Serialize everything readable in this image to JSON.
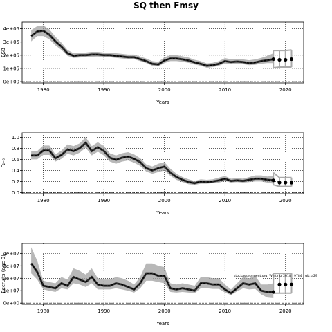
{
  "title": "SQ then Fmsy",
  "chart_data": [
    {
      "type": "line",
      "ylabel": "SSB",
      "xlabel": "Years",
      "xlim": [
        1976.5,
        2023
      ],
      "ylim": [
        -10000,
        450000
      ],
      "xticks": [
        "1980",
        "1990",
        "2000",
        "2010",
        "2020"
      ],
      "yticks": [
        {
          "value": 0,
          "label": "0e+00"
        },
        {
          "value": 100000,
          "label": "1e+05"
        },
        {
          "value": 200000,
          "label": "2e+05"
        },
        {
          "value": 300000,
          "label": "3e+05"
        },
        {
          "value": 400000,
          "label": "4e+05"
        }
      ],
      "hline": 0,
      "grid": true,
      "series": [
        {
          "x": [
            1978,
            1979,
            1980,
            1981,
            1982,
            1983,
            1984,
            1985,
            1986,
            1987,
            1988,
            1989,
            1990,
            1991,
            1992,
            1993,
            1994,
            1995,
            1996,
            1997,
            1998,
            1999,
            2000,
            2001,
            2002,
            2003,
            2004,
            2005,
            2006,
            2007,
            2008,
            2009,
            2010,
            2011,
            2012,
            2013,
            2014,
            2015,
            2016,
            2017,
            2018
          ],
          "y": [
            345000,
            380000,
            385000,
            355000,
            305000,
            265000,
            215000,
            195000,
            200000,
            200000,
            205000,
            205000,
            200000,
            200000,
            195000,
            190000,
            185000,
            185000,
            170000,
            155000,
            135000,
            130000,
            160000,
            175000,
            175000,
            168000,
            160000,
            145000,
            135000,
            120000,
            125000,
            135000,
            155000,
            148000,
            152000,
            148000,
            140000,
            145000,
            155000,
            162000,
            170000
          ],
          "lower": [
            305000,
            345000,
            345000,
            320000,
            275000,
            240000,
            195000,
            180000,
            183000,
            185000,
            188000,
            190000,
            185000,
            185000,
            180000,
            175000,
            170000,
            170000,
            155000,
            140000,
            120000,
            115000,
            140000,
            155000,
            155000,
            150000,
            142000,
            130000,
            120000,
            105000,
            110000,
            120000,
            138000,
            132000,
            136000,
            132000,
            125000,
            128000,
            135000,
            140000,
            140000
          ],
          "upper": [
            390000,
            420000,
            425000,
            395000,
            340000,
            295000,
            240000,
            215000,
            220000,
            220000,
            225000,
            225000,
            220000,
            220000,
            215000,
            210000,
            205000,
            205000,
            190000,
            175000,
            155000,
            150000,
            185000,
            200000,
            200000,
            192000,
            182000,
            165000,
            155000,
            138000,
            143000,
            155000,
            178000,
            170000,
            172000,
            168000,
            162000,
            168000,
            180000,
            195000,
            215000
          ]
        }
      ],
      "forecast": {
        "x": [
          2018,
          2019,
          2020,
          2021
        ],
        "y": [
          170000,
          165000,
          165000,
          170000
        ],
        "lower": [
          105000,
          110000,
          110000,
          110000
        ],
        "upper": [
          235000,
          235000,
          235000,
          240000
        ]
      }
    },
    {
      "type": "line",
      "ylabel": "F₂₋₆",
      "xlabel": "Years",
      "xlim": [
        1976.5,
        2023
      ],
      "ylim": [
        -0.02,
        1.08
      ],
      "xticks": [
        "1980",
        "1990",
        "2000",
        "2010",
        "2020"
      ],
      "yticks": [
        {
          "value": 0,
          "label": "0.0"
        },
        {
          "value": 0.2,
          "label": "0.2"
        },
        {
          "value": 0.4,
          "label": "0.4"
        },
        {
          "value": 0.6,
          "label": "0.6"
        },
        {
          "value": 0.8,
          "label": "0.8"
        },
        {
          "value": 1.0,
          "label": "1.0"
        }
      ],
      "hline": 0,
      "grid": true,
      "series": [
        {
          "x": [
            1978,
            1979,
            1980,
            1981,
            1982,
            1983,
            1984,
            1985,
            1986,
            1987,
            1988,
            1989,
            1990,
            1991,
            1992,
            1993,
            1994,
            1995,
            1996,
            1997,
            1998,
            1999,
            2000,
            2001,
            2002,
            2003,
            2004,
            2005,
            2006,
            2007,
            2008,
            2009,
            2010,
            2011,
            2012,
            2013,
            2014,
            2015,
            2016,
            2017,
            2018
          ],
          "y": [
            0.67,
            0.67,
            0.76,
            0.76,
            0.62,
            0.68,
            0.78,
            0.75,
            0.8,
            0.9,
            0.75,
            0.82,
            0.75,
            0.63,
            0.59,
            0.63,
            0.65,
            0.61,
            0.55,
            0.44,
            0.4,
            0.44,
            0.47,
            0.36,
            0.28,
            0.23,
            0.19,
            0.17,
            0.2,
            0.19,
            0.2,
            0.22,
            0.25,
            0.21,
            0.22,
            0.21,
            0.23,
            0.25,
            0.25,
            0.23,
            0.22
          ],
          "lower": [
            0.6,
            0.6,
            0.68,
            0.68,
            0.56,
            0.61,
            0.7,
            0.67,
            0.72,
            0.81,
            0.67,
            0.74,
            0.67,
            0.56,
            0.52,
            0.56,
            0.58,
            0.54,
            0.48,
            0.38,
            0.34,
            0.37,
            0.4,
            0.3,
            0.23,
            0.19,
            0.15,
            0.14,
            0.16,
            0.16,
            0.17,
            0.18,
            0.21,
            0.18,
            0.19,
            0.18,
            0.19,
            0.2,
            0.2,
            0.18,
            0.16
          ],
          "upper": [
            0.75,
            0.75,
            0.85,
            0.85,
            0.69,
            0.76,
            0.87,
            0.84,
            0.89,
            1.0,
            0.84,
            0.91,
            0.84,
            0.71,
            0.67,
            0.71,
            0.73,
            0.69,
            0.62,
            0.51,
            0.47,
            0.52,
            0.55,
            0.43,
            0.34,
            0.28,
            0.24,
            0.21,
            0.24,
            0.23,
            0.24,
            0.27,
            0.3,
            0.25,
            0.26,
            0.25,
            0.28,
            0.31,
            0.31,
            0.29,
            0.3
          ]
        }
      ],
      "forecast": {
        "x": [
          2018,
          2019,
          2020,
          2021
        ],
        "y": [
          0.22,
          0.18,
          0.18,
          0.18
        ],
        "lower": [
          0.14,
          0.11,
          0.11,
          0.11
        ],
        "upper": [
          0.36,
          0.27,
          0.27,
          0.27
        ]
      }
    },
    {
      "type": "line",
      "ylabel": "Recruits (age 0)",
      "xlabel": "Years",
      "xlim": [
        1976.5,
        2023
      ],
      "ylim": [
        -1000000,
        48000000
      ],
      "xticks": [
        "1980",
        "1990",
        "2000",
        "2010",
        "2020"
      ],
      "yticks": [
        {
          "value": 0,
          "label": "0e+00"
        },
        {
          "value": 10000000,
          "label": "1e+07"
        },
        {
          "value": 20000000,
          "label": "2e+07"
        },
        {
          "value": 30000000,
          "label": "3e+07"
        },
        {
          "value": 40000000,
          "label": "4e+07"
        }
      ],
      "hline": 0,
      "grid": true,
      "annotation": "stockassessment.org, Whiting_2018_r9784 , git: a29",
      "series": [
        {
          "x": [
            1978,
            1979,
            1980,
            1981,
            1982,
            1983,
            1984,
            1985,
            1986,
            1987,
            1988,
            1989,
            1990,
            1991,
            1992,
            1993,
            1994,
            1995,
            1996,
            1997,
            1998,
            1999,
            2000,
            2001,
            2002,
            2003,
            2004,
            2005,
            2006,
            2007,
            2008,
            2009,
            2010,
            2011,
            2012,
            2013,
            2014,
            2015,
            2016,
            2017,
            2018
          ],
          "y": [
            32000000,
            25000000,
            14000000,
            13000000,
            12000000,
            16000000,
            14000000,
            21000000,
            19000000,
            17000000,
            21000000,
            15000000,
            14000000,
            14000000,
            16000000,
            15000000,
            13000000,
            11000000,
            16000000,
            24000000,
            24000000,
            22000000,
            22000000,
            12000000,
            11000000,
            12000000,
            11000000,
            10000000,
            16000000,
            16000000,
            15000000,
            15000000,
            11000000,
            8000000,
            12000000,
            16000000,
            15000000,
            16000000,
            10000000,
            9000000,
            9000000
          ],
          "lower": [
            24000000,
            19000000,
            11000000,
            10000000,
            9000000,
            12000000,
            11000000,
            16000000,
            15000000,
            13000000,
            16000000,
            11000000,
            11000000,
            11000000,
            12000000,
            11000000,
            10000000,
            8500000,
            12000000,
            18000000,
            18000000,
            17000000,
            16000000,
            9000000,
            8500000,
            9000000,
            8500000,
            8000000,
            12000000,
            12000000,
            11500000,
            11500000,
            8500000,
            6500000,
            9500000,
            12000000,
            11000000,
            11500000,
            7000000,
            4500000,
            4000000
          ],
          "upper": [
            45000000,
            34000000,
            18000000,
            17000000,
            16000000,
            21000000,
            19000000,
            28000000,
            26000000,
            23000000,
            28000000,
            20000000,
            19000000,
            19000000,
            21000000,
            20000000,
            18000000,
            15000000,
            21000000,
            32000000,
            32000000,
            30000000,
            29000000,
            16000000,
            15000000,
            16000000,
            15000000,
            14000000,
            21000000,
            21000000,
            20000000,
            20000000,
            15000000,
            11000000,
            16000000,
            21000000,
            20000000,
            22000000,
            15000000,
            15000000,
            16000000
          ]
        }
      ],
      "forecast": {
        "x": [
          2018,
          2019,
          2020,
          2021
        ],
        "y": [
          9000000,
          15000000,
          15000000,
          15000000
        ],
        "lower": [
          8000000,
          8000000,
          8000000,
          8000000
        ],
        "upper": [
          24000000,
          24000000,
          24000000,
          24000000
        ]
      }
    }
  ]
}
